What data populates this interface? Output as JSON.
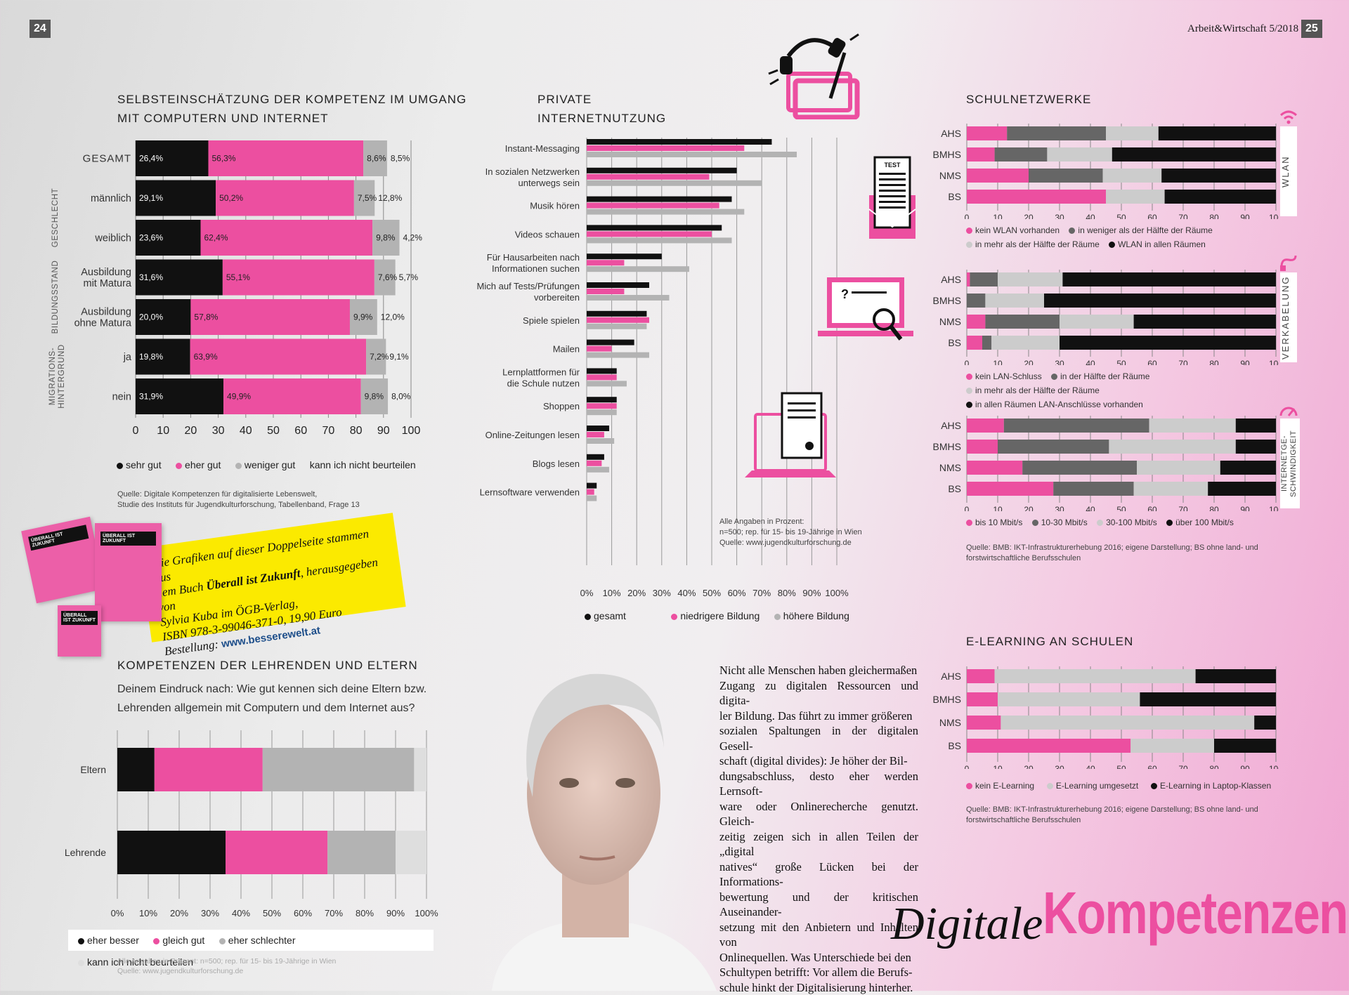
{
  "header": {
    "page_left": "24",
    "page_right": "25",
    "magazine": "Arbeit&Wirtschaft 5/2018"
  },
  "colors": {
    "pink": "#ec4fa0",
    "black": "#111111",
    "darkgray": "#666666",
    "gray": "#b3b3b3",
    "lightgray": "#dedede"
  },
  "icons": [
    "headphones-tablet-icon",
    "test-letter-icon",
    "computer-search-icon",
    "laptop-document-icon"
  ],
  "test_icon_label": "TEST",
  "chart_data": [
    {
      "id": "selbst",
      "type": "bar",
      "title": "SELBSTEINSCHÄTZUNG DER KOMPETENZ IM UMGANG MIT COMPUTERN UND INTERNET",
      "title_lines": [
        "SELBSTEINSCHÄTZUNG DER KOMPETENZ IM UMGANG",
        "MIT COMPUTERN UND INTERNET"
      ],
      "stacked": true,
      "orientation": "horizontal",
      "categories": [
        "GESAMT",
        "männlich",
        "weiblich",
        "Ausbildung mit Matura",
        "Ausbildung ohne Matura",
        "ja",
        "nein"
      ],
      "category_lines": [
        [
          "GESAMT"
        ],
        [
          "männlich"
        ],
        [
          "weiblich"
        ],
        [
          "Ausbildung",
          "mit Matura"
        ],
        [
          "Ausbildung",
          "ohne Matura"
        ],
        [
          "ja"
        ],
        [
          "nein"
        ]
      ],
      "groups": [
        {
          "label": "GESCHLECHT",
          "rows": [
            1,
            2
          ]
        },
        {
          "label": "BILDUNGSSTAND",
          "rows": [
            3,
            4
          ]
        },
        {
          "label": "MIGRATIONS-\nHINTERGRUND",
          "rows": [
            5,
            6
          ]
        }
      ],
      "series": [
        {
          "name": "sehr gut",
          "color": "#111111",
          "values": [
            26.4,
            29.1,
            23.6,
            31.6,
            20.0,
            19.8,
            31.9
          ],
          "labels": [
            "26,4%",
            "29,1%",
            "23,6%",
            "31,6%",
            "20,0%",
            "19,8%",
            "31,9%"
          ]
        },
        {
          "name": "eher gut",
          "color": "#ec4fa0",
          "values": [
            56.3,
            50.2,
            62.4,
            55.1,
            57.8,
            63.9,
            49.9
          ],
          "labels": [
            "56,3%",
            "50,2%",
            "62,4%",
            "55,1%",
            "57,8%",
            "63,9%",
            "49,9%"
          ]
        },
        {
          "name": "weniger gut",
          "color": "#b3b3b3",
          "values": [
            8.6,
            7.5,
            9.8,
            7.6,
            9.9,
            7.2,
            9.8
          ],
          "labels": [
            "8,6%",
            "7,5%",
            "9,8%",
            "7,6%",
            "9,9%",
            "7,2%",
            "9,8%"
          ]
        },
        {
          "name": "kann ich nicht beurteilen",
          "color": "none",
          "values": [
            8.5,
            12.8,
            4.2,
            5.7,
            12.0,
            9.1,
            8.0
          ],
          "labels": [
            "8,5%",
            "12,8%",
            "4,2%",
            "5,7%",
            "12,0%",
            "9,1%",
            "8,0%"
          ]
        }
      ],
      "xlim": [
        0,
        100
      ],
      "xticks": [
        "0",
        "10",
        "20",
        "30",
        "40",
        "50",
        "60",
        "70",
        "80",
        "90",
        "100"
      ],
      "legend": "bottom",
      "source": [
        "Quelle: Digitale Kompetenzen für digitalisierte Lebenswelt,",
        "Studie des Instituts für Jugendkulturforschung, Tabellenband, Frage 13"
      ]
    },
    {
      "id": "privat",
      "type": "bar",
      "title": "PRIVATE INTERNETNUTZUNG",
      "title_lines": [
        "PRIVATE",
        "INTERNETNUTZUNG"
      ],
      "orientation": "horizontal",
      "categories": [
        "Instant-Messaging",
        "In sozialen Netzwerken unterwegs sein",
        "Musik hören",
        "Videos schauen",
        "Für Hausarbeiten nach Informationen suchen",
        "Mich auf Tests/Prüfungen vorbereiten",
        "Spiele spielen",
        "Mailen",
        "Lernplattformen für die Schule nutzen",
        "Shoppen",
        "Online-Zeitungen lesen",
        "Blogs lesen",
        "Lernsoftware verwenden"
      ],
      "category_lines": [
        [
          "Instant-Messaging"
        ],
        [
          "In sozialen Netzwerken",
          "unterwegs sein"
        ],
        [
          "Musik hören"
        ],
        [
          "Videos schauen"
        ],
        [
          "Für Hausarbeiten nach",
          "Informationen suchen"
        ],
        [
          "Mich auf Tests/Prüfungen",
          "vorbereiten"
        ],
        [
          "Spiele spielen"
        ],
        [
          "Mailen"
        ],
        [
          "Lernplattformen für",
          "die Schule nutzen"
        ],
        [
          "Shoppen"
        ],
        [
          "Online-Zeitungen lesen"
        ],
        [
          "Blogs lesen"
        ],
        [
          "Lernsoftware verwenden"
        ]
      ],
      "series": [
        {
          "name": "gesamt",
          "color": "#111111",
          "values": [
            74,
            60,
            58,
            54,
            30,
            25,
            24,
            19,
            12,
            12,
            9,
            7,
            4
          ]
        },
        {
          "name": "niedrigere Bildung",
          "color": "#ec4fa0",
          "values": [
            63,
            49,
            53,
            50,
            15,
            15,
            25,
            10,
            12,
            12,
            7,
            6,
            3
          ]
        },
        {
          "name": "höhere Bildung",
          "color": "#b3b3b3",
          "values": [
            84,
            70,
            63,
            58,
            41,
            33,
            24,
            25,
            16,
            12,
            11,
            9,
            4
          ]
        }
      ],
      "xlim": [
        0,
        100
      ],
      "xticks": [
        "0%",
        "10%",
        "20%",
        "30%",
        "40%",
        "50%",
        "60%",
        "70%",
        "80%",
        "90%",
        "100%"
      ],
      "legend": "bottom",
      "note": [
        "Alle Angaben in Prozent:",
        "n=500; rep. für 15- bis 19-Jährige in Wien",
        "Quelle: www.jugendkulturforschung.de"
      ]
    },
    {
      "id": "wlan",
      "type": "bar",
      "title": "SCHULNETZWERKE",
      "stacked": true,
      "orientation": "horizontal",
      "sidebar": "WLAN",
      "categories": [
        "AHS",
        "BMHS",
        "NMS",
        "BS"
      ],
      "series": [
        {
          "name": "kein WLAN vorhanden",
          "color": "#ec4fa0",
          "values": [
            13,
            9,
            20,
            45
          ]
        },
        {
          "name": "in weniger als der Hälfte der Räume",
          "color": "#666666",
          "values": [
            32,
            17,
            24,
            0
          ]
        },
        {
          "name": "in mehr als der Hälfte der Räume",
          "color": "#cccccc",
          "values": [
            17,
            21,
            19,
            19
          ]
        },
        {
          "name": "WLAN in allen Räumen",
          "color": "#111111",
          "values": [
            38,
            53,
            37,
            36
          ]
        }
      ],
      "xlim": [
        0,
        100
      ],
      "xticks": [
        "0",
        "10",
        "20",
        "30",
        "40",
        "50",
        "60",
        "70",
        "80",
        "90",
        "100"
      ],
      "legend": "bottom"
    },
    {
      "id": "lan",
      "type": "bar",
      "stacked": true,
      "orientation": "horizontal",
      "sidebar": "VERKABELUNG",
      "categories": [
        "AHS",
        "BMHS",
        "NMS",
        "BS"
      ],
      "series": [
        {
          "name": "kein LAN-Schluss",
          "color": "#ec4fa0",
          "values": [
            1,
            0,
            6,
            5
          ]
        },
        {
          "name": "in der Hälfte der Räume",
          "color": "#666666",
          "values": [
            9,
            6,
            24,
            3
          ]
        },
        {
          "name": "in mehr als der Hälfte der Räume",
          "color": "#cccccc",
          "values": [
            21,
            19,
            24,
            22
          ]
        },
        {
          "name": "in allen Räumen LAN-Anschlüsse vorhanden",
          "color": "#111111",
          "values": [
            69,
            75,
            46,
            70
          ]
        }
      ],
      "xlim": [
        0,
        100
      ],
      "xticks": [
        "0",
        "10",
        "20",
        "30",
        "40",
        "50",
        "60",
        "70",
        "80",
        "90",
        "100"
      ],
      "legend": "bottom"
    },
    {
      "id": "speed",
      "type": "bar",
      "stacked": true,
      "orientation": "horizontal",
      "sidebar": "INTERNETGE-SCHWINDIGKEIT",
      "sidebar_lines": [
        "INTERNETGE-",
        "SCHWINDIGKEIT"
      ],
      "categories": [
        "AHS",
        "BMHS",
        "NMS",
        "BS"
      ],
      "series": [
        {
          "name": "bis 10 Mbit/s",
          "color": "#ec4fa0",
          "values": [
            12,
            10,
            18,
            28
          ]
        },
        {
          "name": "10-30 Mbit/s",
          "color": "#666666",
          "values": [
            47,
            36,
            37,
            26
          ]
        },
        {
          "name": "30-100 Mbit/s",
          "color": "#cccccc",
          "values": [
            28,
            41,
            27,
            24
          ]
        },
        {
          "name": "über 100 Mbit/s",
          "color": "#111111",
          "values": [
            13,
            13,
            18,
            22
          ]
        }
      ],
      "xlim": [
        0,
        100
      ],
      "xticks": [
        "0",
        "10",
        "20",
        "30",
        "40",
        "50",
        "60",
        "70",
        "80",
        "90",
        "100"
      ],
      "legend": "bottom",
      "source": [
        "Quelle: BMB: IKT-Infrastrukturerhebung 2016; eigene Darstellung; BS ohne land- und",
        "forstwirtschaftliche Berufsschulen"
      ]
    },
    {
      "id": "elearn",
      "type": "bar",
      "title": "E-LEARNING AN SCHULEN",
      "stacked": true,
      "orientation": "horizontal",
      "categories": [
        "AHS",
        "BMHS",
        "NMS",
        "BS"
      ],
      "series": [
        {
          "name": "kein E-Learning",
          "color": "#ec4fa0",
          "values": [
            9,
            10,
            11,
            53
          ]
        },
        {
          "name": "E-Learning umgesetzt",
          "color": "#cccccc",
          "values": [
            65,
            46,
            82,
            27
          ]
        },
        {
          "name": "E-Learning in Laptop-Klassen",
          "color": "#111111",
          "values": [
            26,
            44,
            7,
            20
          ]
        }
      ],
      "xlim": [
        0,
        100
      ],
      "xticks": [
        "0",
        "10",
        "20",
        "30",
        "40",
        "50",
        "60",
        "70",
        "80",
        "90",
        "100"
      ],
      "legend": "bottom",
      "source": [
        "Quelle: BMB: IKT-Infrastrukturerhebung 2016; eigene Darstellung; BS ohne land- und",
        "forstwirtschaftliche Berufsschulen"
      ]
    },
    {
      "id": "lehrende",
      "type": "bar",
      "title": "KOMPETENZEN DER LEHRENDEN UND ELTERN",
      "subtitle": "Deinem Eindruck nach: Wie gut kennen sich deine Eltern bzw. Lehrenden allgemein mit Computern und dem Internet aus?",
      "subtitle_lines": [
        "Deinem Eindruck nach: Wie gut kennen sich deine Eltern bzw.",
        "Lehrenden allgemein mit Computern und dem Internet aus?"
      ],
      "stacked": true,
      "orientation": "horizontal",
      "categories": [
        "Eltern",
        "Lehrende"
      ],
      "series": [
        {
          "name": "eher besser",
          "color": "#111111",
          "values": [
            12,
            35
          ]
        },
        {
          "name": "gleich gut",
          "color": "#ec4fa0",
          "values": [
            35,
            33
          ]
        },
        {
          "name": "eher schlechter",
          "color": "#b3b3b3",
          "values": [
            49,
            22
          ]
        },
        {
          "name": "kann ich nicht beurteilen",
          "color": "#dedede",
          "values": [
            4,
            10
          ]
        }
      ],
      "xlim": [
        0,
        100
      ],
      "xticks": [
        "0%",
        "10%",
        "20%",
        "30%",
        "40%",
        "50%",
        "60%",
        "70%",
        "80%",
        "90%",
        "100%"
      ],
      "legend": "bottom",
      "note": [
        "Alle Angaben in Prozent: n=500; rep. für 15- bis 19-Jährige in Wien",
        "Quelle: www.jugendkulturforschung.de"
      ]
    }
  ],
  "book_promo": {
    "lines": [
      "Die Grafiken auf dieser Doppelseite stammen aus",
      "dem Buch",
      "Überall ist Zukunft",
      ", herausgegeben von",
      "Sylvia Kuba im ÖGB-Verlag,",
      "ISBN 978-3-99046-371-0, 19,90 Euro",
      "Bestellung:",
      "www.besserewelt.at"
    ],
    "cover_title": "ÜBERALL IST ZUKUNFT"
  },
  "article": {
    "lines": [
      "Nicht alle Menschen haben gleichermaßen",
      "Zugang zu digitalen Ressourcen und digita-",
      "ler Bildung. Das führt zu immer größeren",
      "sozialen Spaltungen in der digitalen Gesell-",
      "schaft (digital divides): Je höher der Bil-",
      "dungsabschluss, desto eher werden Lernsoft-",
      "ware oder Onlinerecherche genutzt. Gleich-",
      "zeitig zeigen sich in allen Teilen der „digital",
      "natives“ große Lücken bei der Informations-",
      "bewertung und der kritischen Auseinander-",
      "setzung mit den Anbietern und Inhalten von",
      "Onlinequellen. Was Unterschiede bei den",
      "Schultypen betrifft: Vor allem die Berufs-",
      "schule hinkt der Digitalisierung hinterher."
    ]
  },
  "page_title": {
    "part1": "Digitale",
    "part2": "Kompetenzen"
  }
}
